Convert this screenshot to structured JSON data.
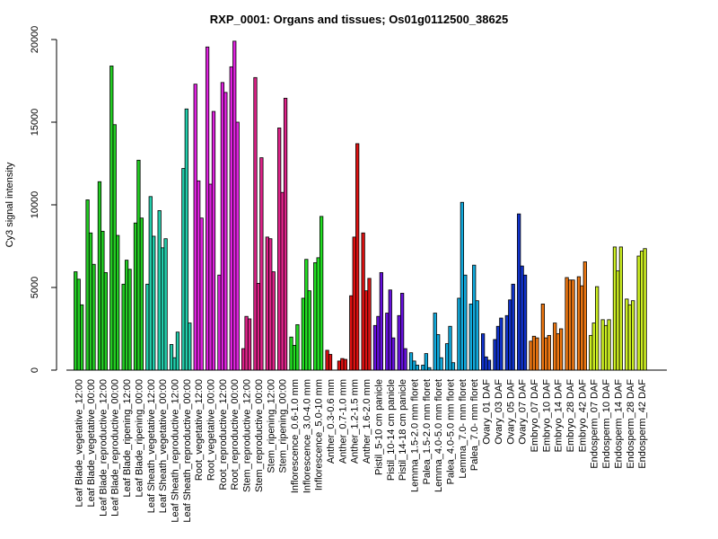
{
  "chart_data": {
    "type": "bar",
    "title": "RXP_0001: Organs and tissues; Os01g0112500_38625",
    "xlabel": "",
    "ylabel": "Cy3 signal intensity",
    "ylim": [
      0,
      20000
    ],
    "y_ticks": [
      0,
      5000,
      10000,
      15000,
      20000
    ],
    "grid": false,
    "legend": "none",
    "bar_border_color": "#000000",
    "groups": [
      {
        "label": "Leaf Blade_vegetative_12:00",
        "color": "#22CC22",
        "values": [
          5950,
          5500,
          3950
        ]
      },
      {
        "label": "Leaf Blade_vegetative_00:00",
        "color": "#22CC22",
        "values": [
          10300,
          8300,
          6400
        ]
      },
      {
        "label": "Leaf Blade_reproductive_12:00",
        "color": "#22CC22",
        "values": [
          11400,
          8400,
          5900
        ]
      },
      {
        "label": "Leaf Blade_reproductive_00:00",
        "color": "#22CC22",
        "values": [
          18400,
          14850,
          8150
        ]
      },
      {
        "label": "Leaf Blade_ripening_12:00",
        "color": "#22CC22",
        "values": [
          5200,
          6650,
          6100
        ]
      },
      {
        "label": "Leaf Blade_ripening_00:00",
        "color": "#22CC22",
        "values": [
          8900,
          12700,
          9200
        ]
      },
      {
        "label": "Leaf Sheath_vegetative_12:00",
        "color": "#22CCAA",
        "values": [
          5200,
          10500,
          8100
        ]
      },
      {
        "label": "Leaf Sheath_vegetative_00:00",
        "color": "#22CCAA",
        "values": [
          9650,
          7400,
          7950
        ]
      },
      {
        "label": "Leaf Sheath_reproductive_12:00",
        "color": "#22CCAA",
        "values": [
          1550,
          750,
          2300
        ]
      },
      {
        "label": "Leaf Sheath_reproductive_00:00",
        "color": "#22CCAA",
        "values": [
          12200,
          15800,
          2850
        ]
      },
      {
        "label": "Root_vegetative_12:00",
        "color": "#DD22DD",
        "values": [
          17300,
          11450,
          9200
        ]
      },
      {
        "label": "Root_vegetative_00:00",
        "color": "#DD22DD",
        "values": [
          19550,
          11250,
          15650
        ]
      },
      {
        "label": "Root_reproductive_12:00",
        "color": "#DD22DD",
        "values": [
          5750,
          17400,
          16800
        ]
      },
      {
        "label": "Root_reproductive_00:00",
        "color": "#DD22DD",
        "values": [
          18350,
          19900,
          15000
        ]
      },
      {
        "label": "Stem_reproductive_12:00",
        "color": "#DD2288",
        "values": [
          1300,
          3250,
          3100
        ]
      },
      {
        "label": "Stem_reproductive_00:00",
        "color": "#DD2288",
        "values": [
          17700,
          5250,
          12850
        ]
      },
      {
        "label": "Stem_ripening_12:00",
        "color": "#DD2288",
        "values": [
          8050,
          7950,
          5950
        ]
      },
      {
        "label": "Stem_ripening_00:00",
        "color": "#DD2288",
        "values": [
          14650,
          10750,
          16450
        ]
      },
      {
        "label": "Inflorescence_0.6-1.0 mm",
        "color": "#22DD22",
        "values": [
          2000,
          1500,
          2750
        ]
      },
      {
        "label": "Inflorescence_3.0-4.0 mm",
        "color": "#22DD22",
        "values": [
          4350,
          6700,
          4800
        ]
      },
      {
        "label": "Inflorescence_5.0-10 mm",
        "color": "#22DD22",
        "values": [
          6500,
          6800,
          9300
        ]
      },
      {
        "label": "Anther_0.3-0.6 mm",
        "color": "#DD1111",
        "values": [
          1200,
          950,
          0
        ]
      },
      {
        "label": "Anther_0.7-1.0 mm",
        "color": "#DD1111",
        "values": [
          550,
          700,
          650
        ]
      },
      {
        "label": "Anther_1.2-1.5 mm",
        "color": "#DD1111",
        "values": [
          4500,
          8050,
          13700
        ]
      },
      {
        "label": "Anther_1.6-2.0 mm",
        "color": "#DD1111",
        "values": [
          8300,
          4800,
          5550
        ]
      },
      {
        "label": "Pistil_5-10 cm panicle",
        "color": "#6611DD",
        "values": [
          2700,
          3250,
          5900
        ]
      },
      {
        "label": "Pistil_10-14 cm panicle",
        "color": "#6611DD",
        "values": [
          3450,
          4850,
          1950
        ]
      },
      {
        "label": "Pistil_14-18 cm panicle",
        "color": "#6611DD",
        "values": [
          3300,
          4650,
          1300
        ]
      },
      {
        "label": "Lemma_1.5-2.0 mm floret",
        "color": "#11AADD",
        "values": [
          1050,
          550,
          300
        ]
      },
      {
        "label": "Palea_1.5-2.0 mm floret",
        "color": "#11AADD",
        "values": [
          300,
          1000,
          150
        ]
      },
      {
        "label": "Lemma_4.0-5.0 mm floret",
        "color": "#11AADD",
        "values": [
          3450,
          2150,
          750
        ]
      },
      {
        "label": "Palea_4.0-5.0 mm floret",
        "color": "#11AADD",
        "values": [
          1600,
          2650,
          450
        ]
      },
      {
        "label": "Lemma_7.0- mm floret",
        "color": "#11AADD",
        "values": [
          4350,
          10150,
          5750
        ]
      },
      {
        "label": "Palea_7.0- mm floret",
        "color": "#11AADD",
        "values": [
          4000,
          6350,
          4200
        ]
      },
      {
        "label": "Ovary_01 DAF",
        "color": "#1133CC",
        "values": [
          2200,
          800,
          600
        ]
      },
      {
        "label": "Ovary_03 DAF",
        "color": "#1133CC",
        "values": [
          1850,
          2650,
          3150
        ]
      },
      {
        "label": "Ovary_05 DAF",
        "color": "#1133CC",
        "values": [
          3300,
          4250,
          5200
        ]
      },
      {
        "label": "Ovary_07 DAF",
        "color": "#1133CC",
        "values": [
          9450,
          6300,
          5750
        ]
      },
      {
        "label": "Embryo_07 DAF",
        "color": "#EE7711",
        "values": [
          1750,
          2050,
          1950
        ]
      },
      {
        "label": "Embryo_10 DAF",
        "color": "#EE7711",
        "values": [
          4000,
          1950,
          2100
        ]
      },
      {
        "label": "Embryo_14 DAF",
        "color": "#EE7711",
        "values": [
          2850,
          2200,
          2500
        ]
      },
      {
        "label": "Embryo_28 DAF",
        "color": "#EE7711",
        "values": [
          5600,
          5450,
          5450
        ]
      },
      {
        "label": "Embryo_42 DAF",
        "color": "#EE7711",
        "values": [
          5650,
          5100,
          6550
        ]
      },
      {
        "label": "Endosperm_07 DAF",
        "color": "#CCEE22",
        "values": [
          2100,
          2850,
          5050
        ]
      },
      {
        "label": "Endosperm_10 DAF",
        "color": "#CCEE22",
        "values": [
          3050,
          2700,
          3050
        ]
      },
      {
        "label": "Endosperm_14 DAF",
        "color": "#CCEE22",
        "values": [
          7450,
          6000,
          7450
        ]
      },
      {
        "label": "Endosperm_28 DAF",
        "color": "#CCEE22",
        "values": [
          4300,
          3950,
          4200
        ]
      },
      {
        "label": "Endosperm_42 DAF",
        "color": "#CCEE22",
        "values": [
          6900,
          7200,
          7350
        ]
      }
    ]
  }
}
